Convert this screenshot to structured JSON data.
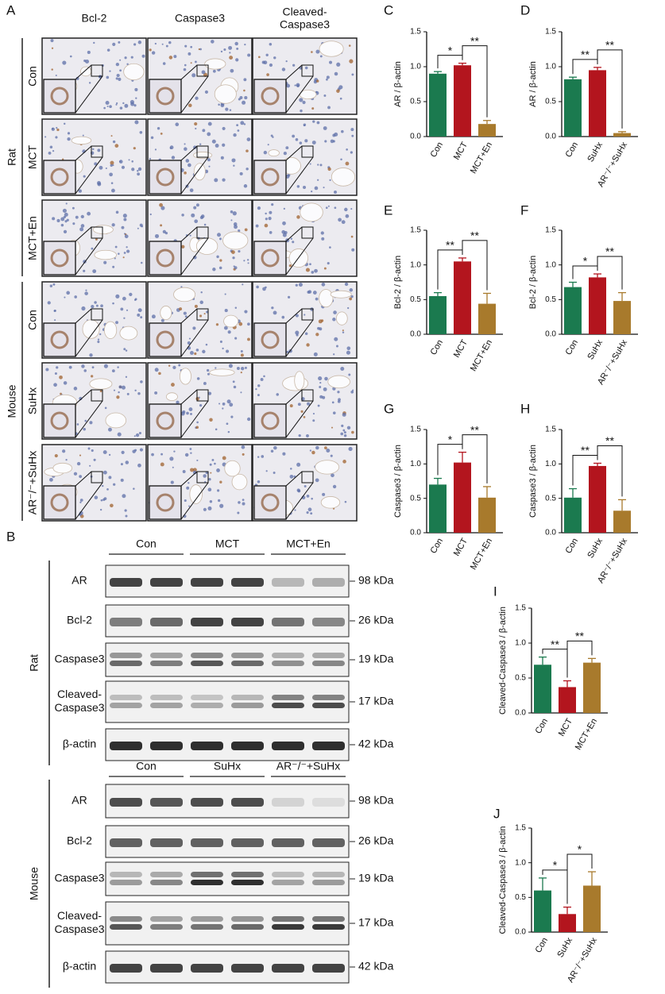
{
  "panel_a": {
    "label": "A",
    "columns": [
      [
        "Bcl-2"
      ],
      [
        "Caspase3"
      ],
      [
        "Cleaved-",
        "Caspase3"
      ]
    ],
    "groups": [
      {
        "name": "Rat",
        "rows": [
          "Con",
          "MCT",
          "MCT+En"
        ]
      },
      {
        "name": "Mouse",
        "rows": [
          "Con",
          "SuHx",
          "AR⁻/⁻+SuHx"
        ]
      }
    ]
  },
  "panel_b": {
    "label": "B",
    "groups": [
      {
        "name": "Rat",
        "conditions": [
          "Con",
          "MCT",
          "MCT+En"
        ],
        "bands": [
          {
            "name": [
              "AR"
            ],
            "size": "98 kDa"
          },
          {
            "name": [
              "Bcl-2"
            ],
            "size": "26 kDa"
          },
          {
            "name": [
              "Caspase3"
            ],
            "size": "19 kDa"
          },
          {
            "name": [
              "Cleaved-",
              "Caspase3"
            ],
            "size": "17 kDa"
          },
          {
            "name": [
              "β-actin"
            ],
            "size": "42 kDa"
          }
        ]
      },
      {
        "name": "Mouse",
        "conditions": [
          "Con",
          "SuHx",
          "AR⁻/⁻+SuHx"
        ],
        "bands": [
          {
            "name": [
              "AR"
            ],
            "size": "98 kDa"
          },
          {
            "name": [
              "Bcl-2"
            ],
            "size": "26 kDa"
          },
          {
            "name": [
              "Caspase3"
            ],
            "size": "19 kDa"
          },
          {
            "name": [
              "Cleaved-",
              "Caspase3"
            ],
            "size": "17 kDa"
          },
          {
            "name": [
              "β-actin"
            ],
            "size": "42 kDa"
          }
        ]
      }
    ]
  },
  "chart_data": [
    {
      "type": "bar",
      "panel": "C",
      "ylabel": "AR / β-actin",
      "categories": [
        "Con",
        "MCT",
        "MCT+En"
      ],
      "values": [
        0.9,
        1.02,
        0.18
      ],
      "errors": [
        0.03,
        0.03,
        0.05
      ],
      "colors": [
        "#1b7a4f",
        "#b3151e",
        "#a87a2c"
      ],
      "ylim": [
        0,
        1.5
      ],
      "yticks": [
        {
          "value": 0,
          "label": "0.0"
        },
        0.5,
        {
          "value": 1,
          "label": "1.0"
        },
        1.5
      ],
      "comparisons": [
        {
          "between": [
            "Con",
            "MCT"
          ],
          "label": "*"
        },
        {
          "between": [
            "MCT",
            "MCT+En"
          ],
          "label": "**"
        }
      ]
    },
    {
      "type": "bar",
      "panel": "D",
      "ylabel": "AR / β-actin",
      "categories": [
        "Con",
        "SuHx",
        "AR⁻/⁻+SuHx"
      ],
      "values": [
        0.82,
        0.95,
        0.05
      ],
      "errors": [
        0.03,
        0.04,
        0.02
      ],
      "colors": [
        "#1b7a4f",
        "#b3151e",
        "#a87a2c"
      ],
      "ylim": [
        0,
        1.5
      ],
      "yticks": [
        {
          "value": 0,
          "label": "0.0"
        },
        0.5,
        {
          "value": 1,
          "label": "1.0"
        },
        1.5
      ],
      "comparisons": [
        {
          "between": [
            "Con",
            "SuHx"
          ],
          "label": "**"
        },
        {
          "between": [
            "SuHx",
            "AR⁻/⁻+SuHx"
          ],
          "label": "**"
        }
      ]
    },
    {
      "type": "bar",
      "panel": "E",
      "ylabel": "Bcl-2 / β-actin",
      "categories": [
        "Con",
        "MCT",
        "MCT+En"
      ],
      "values": [
        0.55,
        1.05,
        0.44
      ],
      "errors": [
        0.05,
        0.05,
        0.15
      ],
      "colors": [
        "#1b7a4f",
        "#b3151e",
        "#a87a2c"
      ],
      "ylim": [
        0,
        1.5
      ],
      "yticks": [
        {
          "value": 0,
          "label": "0.0"
        },
        0.5,
        {
          "value": 1,
          "label": "1.0"
        },
        1.5
      ],
      "comparisons": [
        {
          "between": [
            "Con",
            "MCT"
          ],
          "label": "**"
        },
        {
          "between": [
            "MCT",
            "MCT+En"
          ],
          "label": "**"
        }
      ]
    },
    {
      "type": "bar",
      "panel": "F",
      "ylabel": "Bcl-2 / β-actin",
      "categories": [
        "Con",
        "SuHx",
        "AR⁻/⁻+SuHx"
      ],
      "values": [
        0.68,
        0.82,
        0.48
      ],
      "errors": [
        0.07,
        0.05,
        0.12
      ],
      "colors": [
        "#1b7a4f",
        "#b3151e",
        "#a87a2c"
      ],
      "ylim": [
        0,
        1.5
      ],
      "yticks": [
        {
          "value": 0,
          "label": "0.0"
        },
        0.5,
        {
          "value": 1,
          "label": "1.0"
        },
        1.5
      ],
      "comparisons": [
        {
          "between": [
            "Con",
            "SuHx"
          ],
          "label": "*"
        },
        {
          "between": [
            "SuHx",
            "AR⁻/⁻+SuHx"
          ],
          "label": "**"
        }
      ]
    },
    {
      "type": "bar",
      "panel": "G",
      "ylabel": "Caspase3 / β-actin",
      "categories": [
        "Con",
        "MCT",
        "MCT+En"
      ],
      "values": [
        0.7,
        1.02,
        0.51
      ],
      "errors": [
        0.09,
        0.15,
        0.16
      ],
      "colors": [
        "#1b7a4f",
        "#b3151e",
        "#a87a2c"
      ],
      "ylim": [
        0,
        1.5
      ],
      "yticks": [
        {
          "value": 0,
          "label": "0.0"
        },
        0.5,
        {
          "value": 1,
          "label": "1.0"
        },
        1.5
      ],
      "comparisons": [
        {
          "between": [
            "Con",
            "MCT"
          ],
          "label": "*"
        },
        {
          "between": [
            "MCT",
            "MCT+En"
          ],
          "label": "**"
        }
      ]
    },
    {
      "type": "bar",
      "panel": "H",
      "ylabel": "Caspase3 / β-actin",
      "categories": [
        "Con",
        "SuHx",
        "AR⁻/⁻+SuHx"
      ],
      "values": [
        0.51,
        0.97,
        0.32
      ],
      "errors": [
        0.13,
        0.04,
        0.16
      ],
      "colors": [
        "#1b7a4f",
        "#b3151e",
        "#a87a2c"
      ],
      "ylim": [
        0,
        1.5
      ],
      "yticks": [
        {
          "value": 0,
          "label": "0.0"
        },
        0.5,
        {
          "value": 1,
          "label": "1.0"
        },
        1.5
      ],
      "comparisons": [
        {
          "between": [
            "Con",
            "SuHx"
          ],
          "label": "**"
        },
        {
          "between": [
            "SuHx",
            "AR⁻/⁻+SuHx"
          ],
          "label": "**"
        }
      ]
    },
    {
      "type": "bar",
      "panel": "I",
      "ylabel": "Cleaved-Caspase3 / β-actin",
      "categories": [
        "Con",
        "MCT",
        "MCT+En"
      ],
      "values": [
        0.69,
        0.37,
        0.72
      ],
      "errors": [
        0.11,
        0.09,
        0.06
      ],
      "colors": [
        "#1b7a4f",
        "#b3151e",
        "#a87a2c"
      ],
      "ylim": [
        0,
        1.5
      ],
      "yticks": [
        {
          "value": 0,
          "label": "0.0"
        },
        0.5,
        {
          "value": 1,
          "label": "1.0"
        },
        1.5
      ],
      "comparisons": [
        {
          "between": [
            "Con",
            "MCT"
          ],
          "label": "**"
        },
        {
          "between": [
            "MCT",
            "MCT+En"
          ],
          "label": "**"
        }
      ]
    },
    {
      "type": "bar",
      "panel": "J",
      "ylabel": "Cleaved-Caspase3 / β-actin",
      "categories": [
        "Con",
        "SuHx",
        "AR⁻/⁻+SuHx"
      ],
      "values": [
        0.6,
        0.26,
        0.67
      ],
      "errors": [
        0.18,
        0.1,
        0.2
      ],
      "colors": [
        "#1b7a4f",
        "#b3151e",
        "#a87a2c"
      ],
      "ylim": [
        0,
        1.5
      ],
      "yticks": [
        {
          "value": 0,
          "label": "0.0"
        },
        0.5,
        {
          "value": 1,
          "label": "1.0"
        },
        1.5
      ],
      "comparisons": [
        {
          "between": [
            "Con",
            "SuHx"
          ],
          "label": "*"
        },
        {
          "between": [
            "SuHx",
            "AR⁻/⁻+SuHx"
          ],
          "label": "*"
        }
      ]
    }
  ]
}
